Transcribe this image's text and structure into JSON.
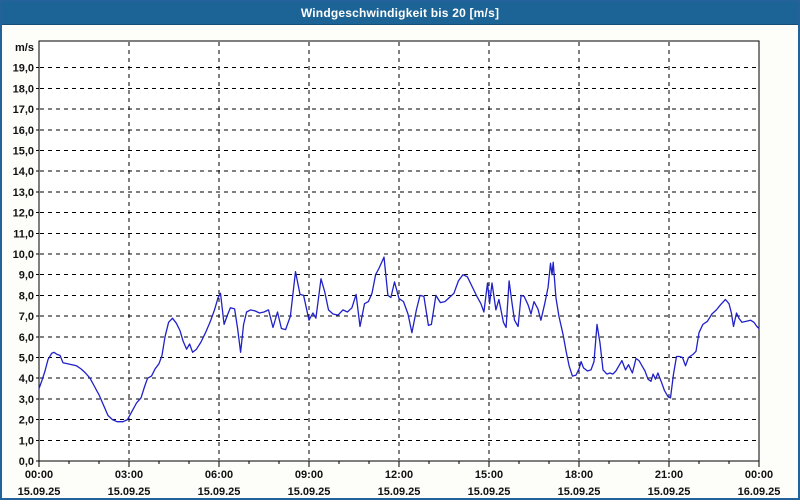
{
  "window": {
    "title": "Windgeschwindigkeit bis 20 [m/s]"
  },
  "colors": {
    "titlebar_bg": "#1D6496",
    "window_border": "#24629B",
    "series_line": "#2121C8",
    "grid": "#000000",
    "label_text": "#111111",
    "plot_bg": "#FFFFFF"
  },
  "chart_data": {
    "type": "line",
    "title": "Windgeschwindigkeit bis 20 [m/s]",
    "ylabel": "m/s",
    "y_axis_unit": "m/s",
    "ylim": [
      0,
      20.3
    ],
    "xlim_hours": [
      0,
      24
    ],
    "grid": "dashed black, horizontal every 1.0 m/s (1-19), vertical every 3 h",
    "x_minor_tick_hours": 1,
    "x_major_tick_hours": 3,
    "legend_position": "none",
    "y_tick_labels": [
      "0,0",
      "1,0",
      "2,0",
      "3,0",
      "4,0",
      "5,0",
      "6,0",
      "7,0",
      "8,0",
      "9,0",
      "10,0",
      "11,0",
      "12,0",
      "13,0",
      "14,0",
      "15,0",
      "16,0",
      "17,0",
      "18,0",
      "19,0"
    ],
    "x_ticks": [
      {
        "hour": 0,
        "time": "00:00",
        "date": "15.09.25"
      },
      {
        "hour": 3,
        "time": "03:00",
        "date": "15.09.25"
      },
      {
        "hour": 6,
        "time": "06:00",
        "date": "15.09.25"
      },
      {
        "hour": 9,
        "time": "09:00",
        "date": "15.09.25"
      },
      {
        "hour": 12,
        "time": "12:00",
        "date": "15.09.25"
      },
      {
        "hour": 15,
        "time": "15:00",
        "date": "15.09.25"
      },
      {
        "hour": 18,
        "time": "18:00",
        "date": "15.09.25"
      },
      {
        "hour": 21,
        "time": "21:00",
        "date": "15.09.25"
      },
      {
        "hour": 24,
        "time": "00:00",
        "date": "16.09.25"
      }
    ],
    "series": [
      {
        "name": "Windgeschwindigkeit",
        "unit": "m/s",
        "points": [
          [
            0.0,
            3.5
          ],
          [
            0.1,
            3.9
          ],
          [
            0.2,
            4.35
          ],
          [
            0.3,
            4.9
          ],
          [
            0.42,
            5.2
          ],
          [
            0.5,
            5.25
          ],
          [
            0.6,
            5.15
          ],
          [
            0.7,
            5.1
          ],
          [
            0.8,
            4.75
          ],
          [
            0.95,
            4.7
          ],
          [
            1.1,
            4.65
          ],
          [
            1.25,
            4.6
          ],
          [
            1.4,
            4.45
          ],
          [
            1.55,
            4.25
          ],
          [
            1.7,
            4.0
          ],
          [
            1.85,
            3.6
          ],
          [
            2.0,
            3.2
          ],
          [
            2.15,
            2.7
          ],
          [
            2.3,
            2.2
          ],
          [
            2.45,
            2.0
          ],
          [
            2.6,
            1.9
          ],
          [
            2.8,
            1.9
          ],
          [
            2.95,
            2.0
          ],
          [
            3.1,
            2.4
          ],
          [
            3.25,
            2.8
          ],
          [
            3.4,
            3.05
          ],
          [
            3.52,
            3.6
          ],
          [
            3.62,
            4.0
          ],
          [
            3.75,
            4.1
          ],
          [
            3.87,
            4.45
          ],
          [
            4.0,
            4.7
          ],
          [
            4.1,
            5.1
          ],
          [
            4.2,
            6.0
          ],
          [
            4.32,
            6.7
          ],
          [
            4.45,
            6.9
          ],
          [
            4.58,
            6.65
          ],
          [
            4.7,
            6.3
          ],
          [
            4.8,
            5.8
          ],
          [
            4.92,
            5.4
          ],
          [
            5.02,
            5.65
          ],
          [
            5.12,
            5.25
          ],
          [
            5.25,
            5.4
          ],
          [
            5.4,
            5.75
          ],
          [
            5.55,
            6.2
          ],
          [
            5.7,
            6.7
          ],
          [
            5.85,
            7.3
          ],
          [
            5.97,
            7.9
          ],
          [
            6.05,
            8.1
          ],
          [
            6.17,
            6.6
          ],
          [
            6.28,
            7.05
          ],
          [
            6.38,
            7.4
          ],
          [
            6.52,
            7.35
          ],
          [
            6.62,
            6.4
          ],
          [
            6.72,
            5.25
          ],
          [
            6.82,
            6.6
          ],
          [
            6.92,
            7.2
          ],
          [
            7.05,
            7.3
          ],
          [
            7.2,
            7.25
          ],
          [
            7.35,
            7.15
          ],
          [
            7.5,
            7.2
          ],
          [
            7.65,
            7.3
          ],
          [
            7.8,
            6.45
          ],
          [
            7.95,
            7.2
          ],
          [
            8.08,
            6.4
          ],
          [
            8.22,
            6.35
          ],
          [
            8.38,
            7.0
          ],
          [
            8.55,
            9.15
          ],
          [
            8.7,
            8.05
          ],
          [
            8.82,
            8.0
          ],
          [
            9.0,
            6.8
          ],
          [
            9.13,
            7.15
          ],
          [
            9.23,
            6.9
          ],
          [
            9.4,
            8.8
          ],
          [
            9.52,
            8.2
          ],
          [
            9.65,
            7.3
          ],
          [
            9.8,
            7.1
          ],
          [
            9.97,
            7.05
          ],
          [
            10.13,
            7.3
          ],
          [
            10.28,
            7.2
          ],
          [
            10.43,
            7.4
          ],
          [
            10.57,
            8.05
          ],
          [
            10.7,
            6.5
          ],
          [
            10.85,
            7.6
          ],
          [
            10.98,
            7.7
          ],
          [
            11.1,
            8.1
          ],
          [
            11.22,
            9.0
          ],
          [
            11.33,
            9.3
          ],
          [
            11.5,
            9.85
          ],
          [
            11.63,
            8.0
          ],
          [
            11.73,
            7.9
          ],
          [
            11.85,
            8.65
          ],
          [
            12.0,
            7.85
          ],
          [
            12.15,
            7.7
          ],
          [
            12.3,
            7.1
          ],
          [
            12.43,
            6.2
          ],
          [
            12.58,
            7.3
          ],
          [
            12.7,
            8.0
          ],
          [
            12.83,
            7.95
          ],
          [
            12.98,
            6.55
          ],
          [
            13.08,
            6.6
          ],
          [
            13.23,
            8.0
          ],
          [
            13.38,
            7.65
          ],
          [
            13.53,
            7.7
          ],
          [
            13.68,
            7.9
          ],
          [
            13.83,
            8.1
          ],
          [
            13.98,
            8.7
          ],
          [
            14.13,
            9.0
          ],
          [
            14.28,
            8.9
          ],
          [
            14.43,
            8.45
          ],
          [
            14.58,
            8.0
          ],
          [
            14.73,
            7.6
          ],
          [
            14.83,
            7.2
          ],
          [
            14.95,
            8.6
          ],
          [
            15.02,
            7.6
          ],
          [
            15.1,
            8.6
          ],
          [
            15.23,
            7.3
          ],
          [
            15.33,
            7.8
          ],
          [
            15.48,
            6.7
          ],
          [
            15.57,
            6.45
          ],
          [
            15.67,
            8.7
          ],
          [
            15.77,
            7.6
          ],
          [
            15.85,
            6.8
          ],
          [
            15.97,
            6.5
          ],
          [
            16.07,
            8.0
          ],
          [
            16.17,
            7.95
          ],
          [
            16.3,
            7.55
          ],
          [
            16.4,
            7.1
          ],
          [
            16.5,
            7.7
          ],
          [
            16.63,
            7.35
          ],
          [
            16.73,
            6.8
          ],
          [
            16.85,
            7.55
          ],
          [
            16.97,
            8.4
          ],
          [
            17.05,
            9.55
          ],
          [
            17.1,
            9.0
          ],
          [
            17.14,
            9.6
          ],
          [
            17.23,
            7.9
          ],
          [
            17.33,
            7.0
          ],
          [
            17.47,
            6.1
          ],
          [
            17.57,
            5.3
          ],
          [
            17.67,
            4.6
          ],
          [
            17.78,
            4.1
          ],
          [
            17.9,
            4.15
          ],
          [
            18.0,
            4.45
          ],
          [
            18.07,
            4.8
          ],
          [
            18.15,
            4.5
          ],
          [
            18.28,
            4.35
          ],
          [
            18.4,
            4.4
          ],
          [
            18.5,
            4.8
          ],
          [
            18.6,
            6.6
          ],
          [
            18.7,
            5.7
          ],
          [
            18.8,
            4.4
          ],
          [
            18.93,
            4.2
          ],
          [
            19.03,
            4.25
          ],
          [
            19.13,
            4.2
          ],
          [
            19.23,
            4.35
          ],
          [
            19.33,
            4.6
          ],
          [
            19.43,
            4.85
          ],
          [
            19.55,
            4.4
          ],
          [
            19.65,
            4.65
          ],
          [
            19.78,
            4.25
          ],
          [
            19.9,
            4.95
          ],
          [
            20.0,
            4.85
          ],
          [
            20.1,
            4.6
          ],
          [
            20.2,
            4.35
          ],
          [
            20.3,
            3.95
          ],
          [
            20.4,
            3.85
          ],
          [
            20.47,
            4.2
          ],
          [
            20.55,
            3.95
          ],
          [
            20.63,
            4.25
          ],
          [
            20.75,
            3.8
          ],
          [
            20.85,
            3.4
          ],
          [
            20.97,
            3.1
          ],
          [
            21.05,
            3.05
          ],
          [
            21.15,
            4.2
          ],
          [
            21.25,
            5.05
          ],
          [
            21.35,
            5.05
          ],
          [
            21.45,
            5.0
          ],
          [
            21.55,
            4.6
          ],
          [
            21.65,
            5.0
          ],
          [
            21.8,
            5.15
          ],
          [
            21.9,
            5.3
          ],
          [
            22.0,
            6.2
          ],
          [
            22.13,
            6.6
          ],
          [
            22.28,
            6.75
          ],
          [
            22.43,
            7.1
          ],
          [
            22.58,
            7.3
          ],
          [
            22.72,
            7.55
          ],
          [
            22.88,
            7.8
          ],
          [
            23.0,
            7.6
          ],
          [
            23.08,
            7.15
          ],
          [
            23.15,
            6.5
          ],
          [
            23.25,
            7.15
          ],
          [
            23.33,
            6.9
          ],
          [
            23.43,
            6.7
          ],
          [
            23.58,
            6.75
          ],
          [
            23.72,
            6.8
          ],
          [
            23.83,
            6.7
          ],
          [
            23.93,
            6.5
          ],
          [
            24.0,
            6.4
          ]
        ]
      }
    ]
  }
}
